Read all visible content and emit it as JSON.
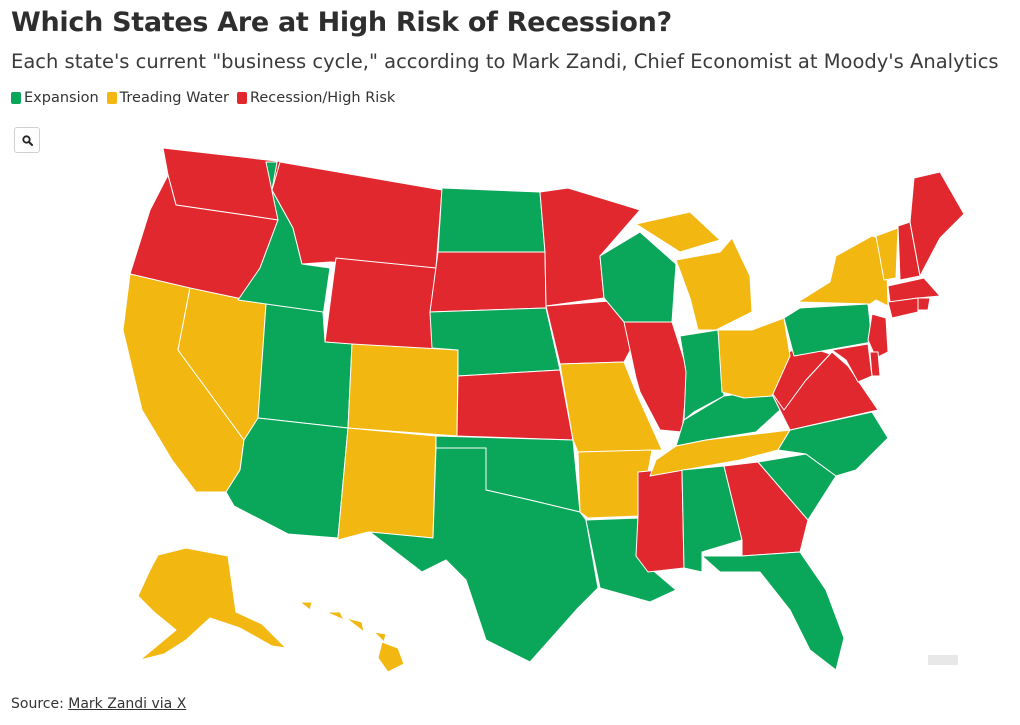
{
  "title": "Which States Are at High Risk of Recession?",
  "subtitle": "Each state's current \"business cycle,\" according to Mark Zandi, Chief Economist at Moody's Analytics",
  "legend": [
    {
      "label": "Expansion",
      "color": "#0aa65a"
    },
    {
      "label": "Treading Water",
      "color": "#f2b711"
    },
    {
      "label": "Recession/High Risk",
      "color": "#e0282e"
    }
  ],
  "search_icon": "magnifier-icon",
  "source": {
    "prefix": "Source: ",
    "link_text": "Mark Zandi via X"
  },
  "categories": {
    "Expansion": [
      "ID",
      "UT",
      "AZ",
      "ND",
      "NE",
      "OK",
      "TX",
      "LA",
      "AL",
      "FL",
      "SC",
      "NC",
      "KY",
      "IN",
      "WI",
      "PA"
    ],
    "Treading Water": [
      "CA",
      "NV",
      "CO",
      "NM",
      "MO",
      "AR",
      "TN",
      "MI",
      "OH",
      "NY",
      "VT",
      "AK",
      "HI"
    ],
    "Recession/High Risk": [
      "WA",
      "OR",
      "MT",
      "WY",
      "SD",
      "MN",
      "IA",
      "KS",
      "IL",
      "MS",
      "GA",
      "VA",
      "WV",
      "MD",
      "DE",
      "NJ",
      "CT",
      "RI",
      "MA",
      "NH",
      "ME"
    ]
  }
}
